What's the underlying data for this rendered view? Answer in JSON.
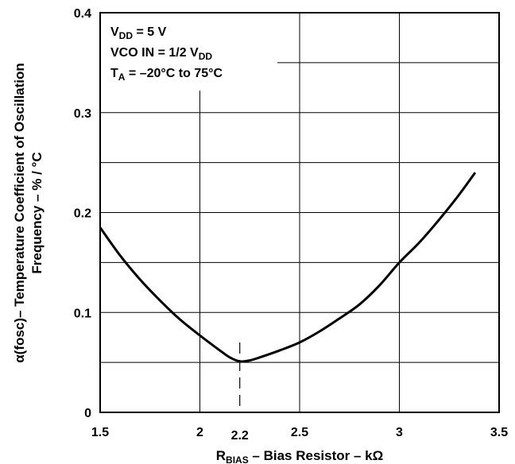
{
  "chart_data": {
    "type": "line",
    "title": "",
    "xlabel_main": "R",
    "xlabel_sub": "BIAS",
    "xlabel_rest": " – Bias Resistor – kΩ",
    "ylabel_line1": "α(fosc)– Temperature Coefficient of Oscillation",
    "ylabel_line2": "Frequency – % / °C",
    "xlim": [
      1.5,
      3.5
    ],
    "ylim": [
      0,
      0.4
    ],
    "x_ticks": [
      {
        "value": 1.5,
        "label": "1.5"
      },
      {
        "value": 2.0,
        "label": "2"
      },
      {
        "value": 2.5,
        "label": "2.5"
      },
      {
        "value": 3.0,
        "label": "3"
      },
      {
        "value": 3.5,
        "label": "3.5"
      }
    ],
    "y_ticks": [
      {
        "value": 0.0,
        "label": "0"
      },
      {
        "value": 0.1,
        "label": "0.1"
      },
      {
        "value": 0.2,
        "label": "0.2"
      },
      {
        "value": 0.3,
        "label": "0.3"
      },
      {
        "value": 0.4,
        "label": "0.4"
      }
    ],
    "x_minor_grid": [],
    "y_minor_grid": [
      0.05,
      0.15,
      0.25,
      0.35
    ],
    "grid": true,
    "marker": {
      "x": 2.2,
      "label": "2.2",
      "y_top": 0.07
    },
    "series": [
      {
        "x": [
          1.5,
          1.6,
          1.7,
          1.8,
          1.9,
          2.0,
          2.1,
          2.15,
          2.2,
          2.25,
          2.3,
          2.4,
          2.5,
          2.6,
          2.7,
          2.8,
          2.9,
          3.0,
          3.1,
          3.2,
          3.3,
          3.38
        ],
        "y": [
          0.185,
          0.157,
          0.133,
          0.112,
          0.093,
          0.077,
          0.062,
          0.055,
          0.051,
          0.052,
          0.055,
          0.062,
          0.07,
          0.081,
          0.094,
          0.108,
          0.127,
          0.15,
          0.17,
          0.193,
          0.218,
          0.24
        ]
      }
    ],
    "legend_lines": [
      {
        "main": "V",
        "sub": "DD",
        "rest": " = 5 V"
      },
      {
        "main": "VCO IN = 1/2 V",
        "sub": "DD",
        "rest": ""
      },
      {
        "main": "T",
        "sub": "A",
        "rest": " = –20°C to 75°C"
      }
    ]
  }
}
